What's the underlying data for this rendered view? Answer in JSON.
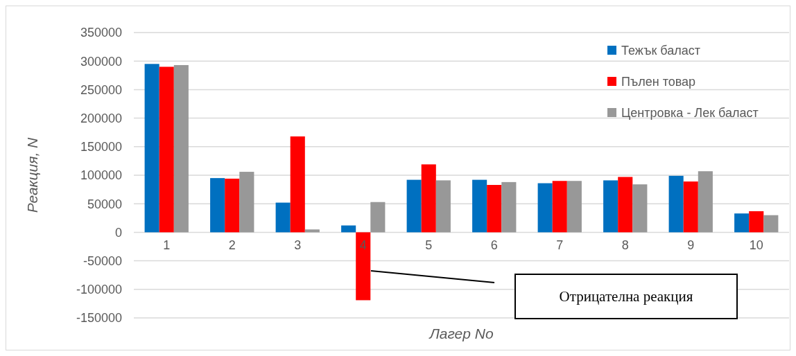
{
  "chart_data": {
    "type": "bar",
    "xlabel": "Лагер No",
    "ylabel": "Реакция, N",
    "categories": [
      "1",
      "2",
      "3",
      "4",
      "5",
      "6",
      "7",
      "8",
      "9",
      "10"
    ],
    "series": [
      {
        "name": "Тежък баласт",
        "color": "#0070c0",
        "values": [
          295000,
          95000,
          52000,
          12000,
          92000,
          92000,
          86000,
          91000,
          99000,
          33000
        ]
      },
      {
        "name": "Пълен товар",
        "color": "#ff0000",
        "values": [
          290000,
          94000,
          168000,
          -119000,
          119000,
          83000,
          90000,
          97000,
          89000,
          37000
        ]
      },
      {
        "name": "Центровка - Лек баласт",
        "color": "#989898",
        "values": [
          293000,
          106000,
          5000,
          53000,
          91000,
          88000,
          90000,
          84000,
          107000,
          30000
        ]
      }
    ],
    "ylim": [
      -150000,
      350000
    ],
    "yticks": [
      -150000,
      -100000,
      -50000,
      0,
      50000,
      100000,
      150000,
      200000,
      250000,
      300000,
      350000
    ],
    "grid": "y",
    "legend": "top right",
    "annotations": [
      "Отрицателна реакция"
    ]
  }
}
